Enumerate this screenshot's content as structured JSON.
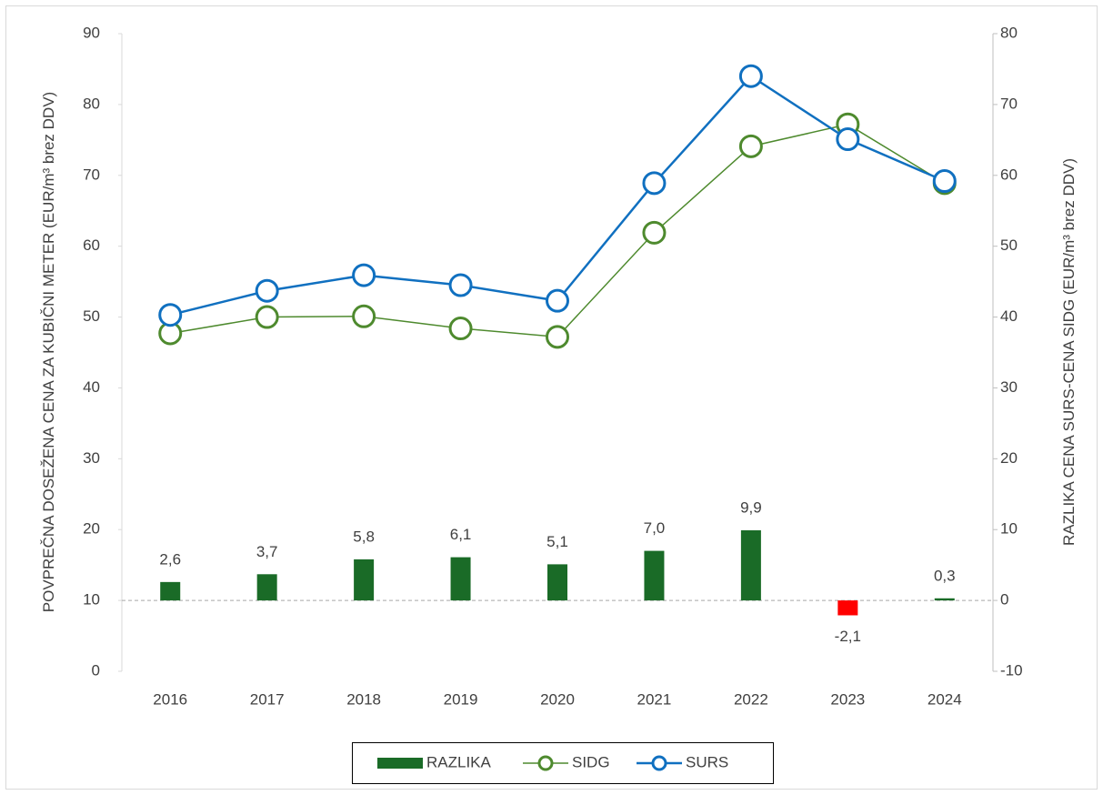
{
  "chart_data": {
    "type": "combo",
    "categories": [
      "2016",
      "2017",
      "2018",
      "2019",
      "2020",
      "2021",
      "2022",
      "2023",
      "2024"
    ],
    "y_label": "POVPREČNA DOSEŽENA CENA ZA KUBIČNI METER (EUR/m³ brez DDV)",
    "y2_label": "RAZLIKA CENA SURS-CENA SIDG (EUR/m³ brez DDV)",
    "ylim": [
      0,
      90
    ],
    "yticks": [
      0,
      10,
      20,
      30,
      40,
      50,
      60,
      70,
      80,
      90
    ],
    "y2lim": [
      -10,
      80
    ],
    "y2ticks": [
      -10,
      0,
      10,
      20,
      30,
      40,
      50,
      60,
      70,
      80
    ],
    "legend": "bottom",
    "series": [
      {
        "name": "RAZLIKA",
        "type": "bar",
        "axis": "y2",
        "color": "#1a6b27",
        "colors": [
          "#1a6b27",
          "#1a6b27",
          "#1a6b27",
          "#1a6b27",
          "#1a6b27",
          "#1a6b27",
          "#1a6b27",
          "#ff0000",
          "#1a6b27"
        ],
        "values": [
          2.6,
          3.7,
          5.8,
          6.1,
          5.1,
          7.0,
          9.9,
          -2.1,
          0.3
        ],
        "value_labels": [
          "2,6",
          "3,7",
          "5,8",
          "6,1",
          "5,1",
          "7,0",
          "9,9",
          "-2,1",
          "0,3"
        ]
      },
      {
        "name": "SIDG",
        "type": "line",
        "color": "#4e8a2e",
        "values": [
          47.7,
          50.0,
          50.1,
          48.4,
          47.2,
          61.9,
          74.1,
          77.2,
          68.9
        ]
      },
      {
        "name": "SURS",
        "type": "line",
        "color": "#1070c0",
        "values": [
          50.3,
          53.7,
          55.9,
          54.5,
          52.3,
          68.9,
          84.0,
          75.1,
          69.2
        ]
      }
    ]
  }
}
